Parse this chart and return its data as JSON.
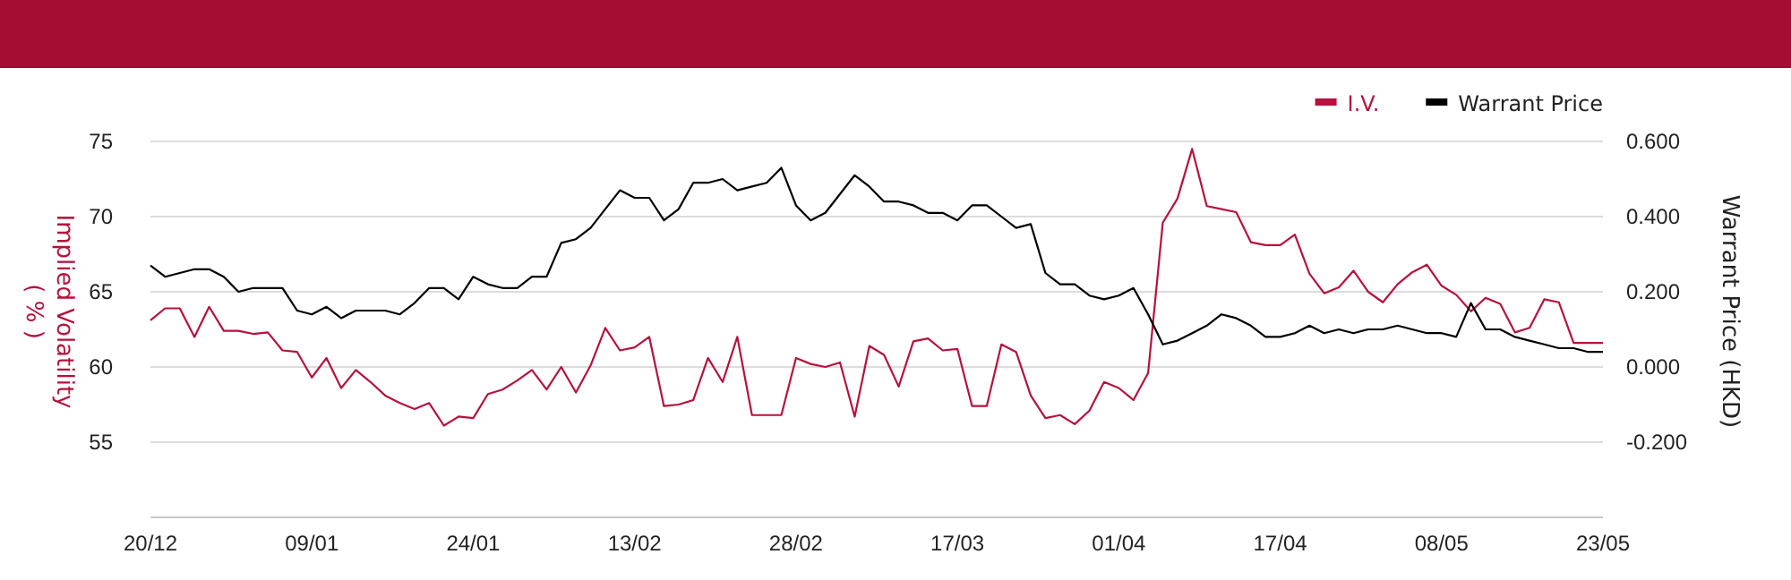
{
  "chart_data": {
    "type": "line",
    "categories": [
      "20/12",
      null,
      null,
      null,
      null,
      null,
      null,
      null,
      null,
      null,
      null,
      "09/01",
      null,
      null,
      null,
      null,
      null,
      null,
      null,
      null,
      null,
      null,
      "24/01",
      null,
      null,
      null,
      null,
      null,
      null,
      null,
      null,
      null,
      null,
      "13/02",
      null,
      null,
      null,
      null,
      null,
      null,
      null,
      null,
      null,
      null,
      "28/02",
      null,
      null,
      null,
      null,
      null,
      null,
      null,
      null,
      null,
      null,
      "17/03",
      null,
      null,
      null,
      null,
      null,
      null,
      null,
      null,
      null,
      null,
      "01/04",
      null,
      null,
      null,
      null,
      null,
      null,
      null,
      null,
      null,
      null,
      "17/04",
      null,
      null,
      null,
      null,
      null,
      null,
      null,
      null,
      null,
      null,
      "08/05",
      null,
      null,
      null,
      null,
      null,
      null,
      null,
      null,
      null,
      null,
      "23/05"
    ],
    "series": [
      {
        "name": "I.V.",
        "color": "#b5123e",
        "values": [
          63.1,
          63.9,
          63.9,
          62.0,
          64.0,
          62.4,
          62.4,
          62.2,
          62.3,
          61.1,
          61.0,
          59.3,
          60.6,
          58.6,
          59.8,
          59.0,
          58.1,
          57.6,
          57.2,
          57.6,
          56.1,
          56.7,
          56.6,
          58.2,
          58.5,
          59.1,
          59.8,
          58.5,
          60.0,
          58.3,
          60.1,
          62.6,
          61.1,
          61.3,
          62.0,
          57.4,
          57.5,
          57.8,
          60.6,
          59.0,
          62.0,
          56.8,
          56.8,
          56.8,
          60.6,
          60.2,
          60.0,
          60.3,
          56.7,
          61.4,
          60.8,
          58.7,
          61.7,
          61.9,
          61.1,
          61.2,
          57.4,
          57.4,
          61.5,
          61.0,
          58.1,
          56.6,
          56.8,
          56.2,
          57.1,
          59.0,
          58.6,
          57.8,
          59.6,
          69.6,
          71.2,
          74.5,
          70.7,
          70.5,
          70.3,
          68.3,
          68.1,
          68.1,
          68.8,
          66.2,
          64.9,
          65.3,
          66.4,
          65.0,
          64.3,
          65.5,
          66.3,
          66.8,
          65.4,
          64.8,
          63.7,
          64.6,
          64.2,
          62.3,
          62.6,
          64.5,
          64.3,
          61.6,
          61.6,
          61.6
        ]
      },
      {
        "name": "Warrant Price",
        "color": "#000000",
        "axis": "y2",
        "values": [
          0.27,
          0.24,
          0.25,
          0.26,
          0.26,
          0.24,
          0.2,
          0.21,
          0.21,
          0.21,
          0.15,
          0.14,
          0.16,
          0.13,
          0.15,
          0.15,
          0.15,
          0.14,
          0.17,
          0.21,
          0.21,
          0.18,
          0.24,
          0.22,
          0.21,
          0.21,
          0.24,
          0.24,
          0.33,
          0.34,
          0.37,
          0.42,
          0.47,
          0.45,
          0.45,
          0.39,
          0.42,
          0.49,
          0.49,
          0.5,
          0.47,
          0.48,
          0.49,
          0.53,
          0.43,
          0.39,
          0.41,
          0.46,
          0.51,
          0.48,
          0.44,
          0.44,
          0.43,
          0.41,
          0.41,
          0.39,
          0.43,
          0.43,
          0.4,
          0.37,
          0.38,
          0.25,
          0.22,
          0.22,
          0.19,
          0.18,
          0.19,
          0.21,
          0.14,
          0.06,
          0.07,
          0.09,
          0.11,
          0.14,
          0.13,
          0.11,
          0.08,
          0.08,
          0.09,
          0.11,
          0.09,
          0.1,
          0.09,
          0.1,
          0.1,
          0.11,
          0.1,
          0.09,
          0.09,
          0.08,
          0.17,
          0.1,
          0.1,
          0.08,
          0.07,
          0.06,
          0.05,
          0.05,
          0.04,
          0.04
        ]
      }
    ],
    "ylabel": "Implied Volatility\n( % )",
    "y2label": "Warrant Price (HKD)",
    "ylim": [
      50,
      75
    ],
    "yticks": [
      55,
      60,
      65,
      70,
      75
    ],
    "y2lim": [
      -0.4,
      0.6
    ],
    "y2ticks": [
      {
        "value": -0.2,
        "label": "-0.200"
      },
      {
        "value": 0,
        "label": "0.000"
      },
      {
        "value": 0.2,
        "label": "0.200"
      },
      {
        "value": 0.4,
        "label": "0.400"
      },
      {
        "value": 0.6,
        "label": "0.600"
      }
    ],
    "grid": "y",
    "legend": "top right",
    "line_style": "solid",
    "marker": "none"
  }
}
